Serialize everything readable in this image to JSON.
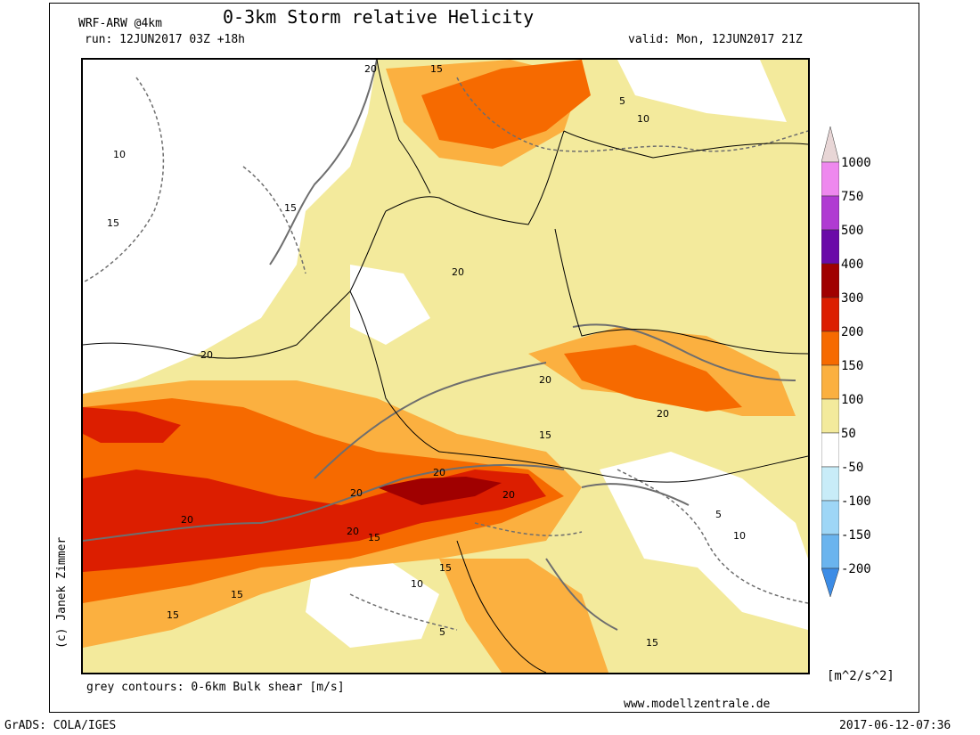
{
  "header": {
    "model": "WRF-ARW @4km",
    "title": "0-3km Storm relative Helicity",
    "run": "run: 12JUN2017 03Z +18h",
    "valid": "valid: Mon, 12JUN2017 21Z"
  },
  "footer": {
    "contours_note": "grey contours: 0-6km Bulk shear [m/s]",
    "website": "www.modellzentrale.de",
    "copyright": "(c) Janek Zimmer",
    "grads": "GrADS: COLA/IGES",
    "timestamp": "2017-06-12-07:36"
  },
  "colorbar": {
    "unit": "[m^2/s^2]",
    "labels": [
      "1000",
      "750",
      "500",
      "400",
      "300",
      "200",
      "150",
      "100",
      "50",
      "-50",
      "-100",
      "-150",
      "-200"
    ],
    "colors": [
      "#e8d6d6",
      "#ee88ee",
      "#b03bd2",
      "#6a0aa8",
      "#a00000",
      "#dc1e00",
      "#f66a00",
      "#fbb040",
      "#f3ea9c",
      "#ffffff",
      "#c8ecf8",
      "#9ed6f6",
      "#6ab4ee",
      "#3c8ce6"
    ]
  },
  "contour_labels": {
    "shear": [
      "20",
      "15",
      "10",
      "5"
    ]
  }
}
